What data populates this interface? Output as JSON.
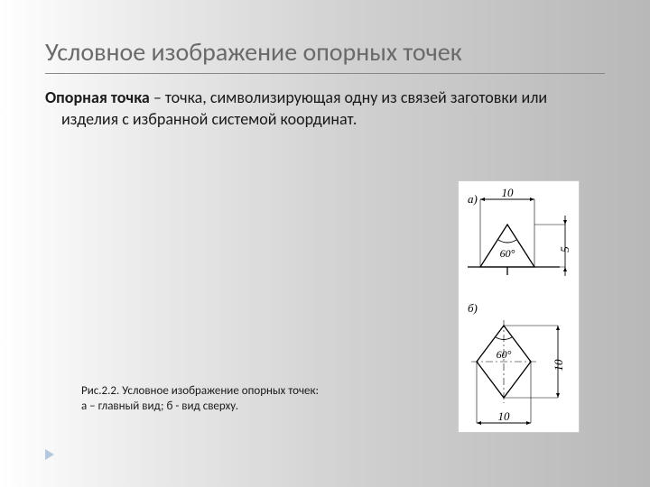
{
  "title": "Условное изображение опорных точек",
  "definition": {
    "term": "Опорная точка",
    "rest": " – точка, символизирующая одну из связей заготовки или изделия с избранной системой координат."
  },
  "caption": {
    "line1": "Рис.2.2. Условное изображение опорных точек:",
    "line2": "а – главный вид; б - вид сверху."
  },
  "figure": {
    "panel_a": {
      "label": "а)",
      "dim_top": "10",
      "dim_right": "5",
      "angle": "60°",
      "triangle_color": "#000000",
      "fill": "#ffffff"
    },
    "panel_b": {
      "label": "б)",
      "dim_right": "10",
      "dim_bottom": "10",
      "angle": "60°",
      "rhombus_color": "#000000",
      "fill": "#ffffff"
    },
    "stroke_width": 1.3,
    "dim_font_size": 13,
    "angle_font_size": 12,
    "label_font_size": 13,
    "font_family": "Times New Roman, serif",
    "font_style": "italic"
  }
}
